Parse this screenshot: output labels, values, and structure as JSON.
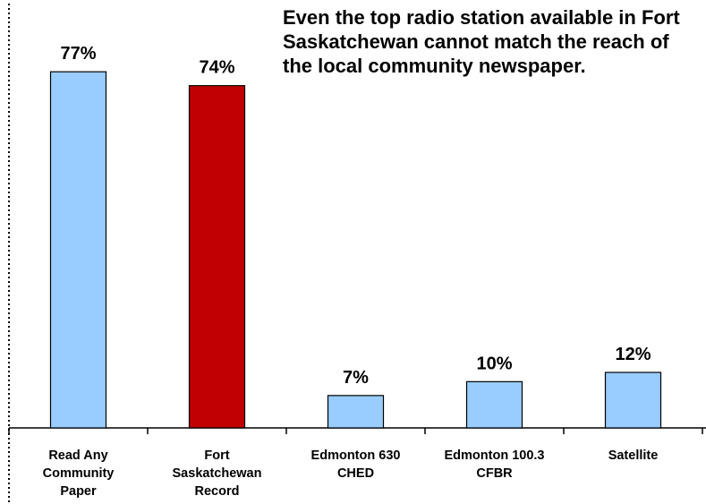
{
  "chart_data": {
    "type": "bar",
    "title": "",
    "annotation": "Even the top radio station available in Fort Saskatchewan cannot match the reach of the local community newspaper.",
    "xlabel": "",
    "ylabel": "",
    "ylim": [
      0,
      90
    ],
    "grid": false,
    "categories": [
      [
        "Read Any",
        "Community",
        "Paper"
      ],
      [
        "Fort",
        "Saskatchewan",
        "Record"
      ],
      [
        "Edmonton 630",
        "CHED"
      ],
      [
        "Edmonton 100.3",
        "CFBR"
      ],
      [
        "Satellite"
      ]
    ],
    "values": [
      77,
      74,
      7,
      10,
      12
    ],
    "value_labels": [
      "77%",
      "74%",
      "7%",
      "10%",
      "12%"
    ],
    "colors": [
      "#99ccff",
      "#c00000",
      "#99ccff",
      "#99ccff",
      "#99ccff"
    ]
  }
}
